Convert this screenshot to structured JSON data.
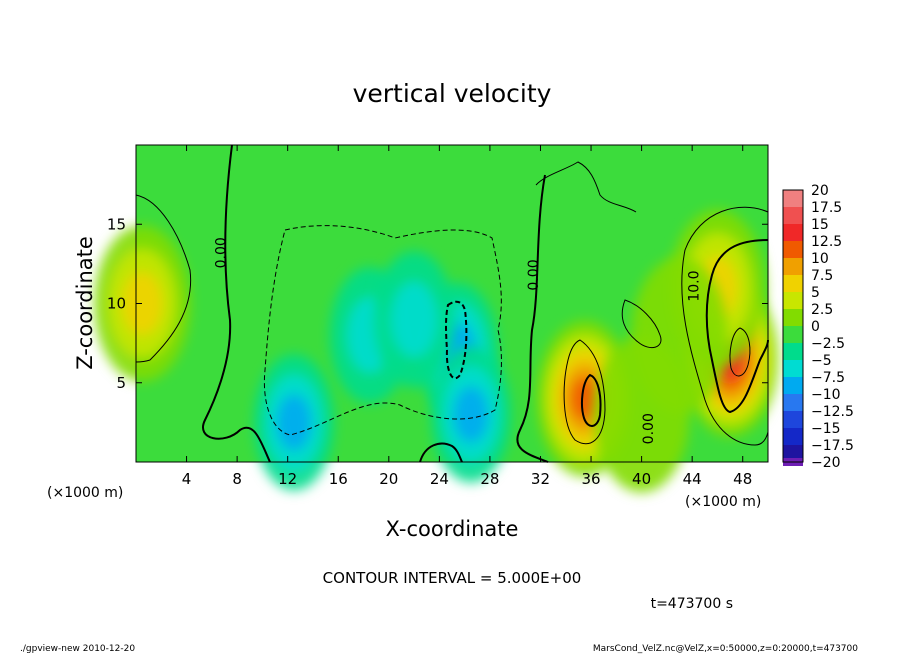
{
  "chart_data": {
    "type": "heatmap",
    "title": "vertical velocity",
    "xlabel": "X-coordinate",
    "ylabel": "Z-coordinate",
    "x_unit_note_left": "(×1000 m)",
    "x_unit_note_right": "(×1000 m)",
    "xlim": [
      0,
      50
    ],
    "ylim": [
      0,
      20
    ],
    "x_ticks": [
      4,
      8,
      12,
      16,
      20,
      24,
      28,
      32,
      36,
      40,
      44,
      48
    ],
    "y_ticks": [
      5,
      10,
      15
    ],
    "colorbar": {
      "labels": [
        "20",
        "17.5",
        "15",
        "12.5",
        "10",
        "7.5",
        "5",
        "2.5",
        "0",
        "−2.5",
        "−5",
        "−7.5",
        "−10",
        "−12.5",
        "−15",
        "−17.5",
        "−20"
      ],
      "colors": [
        "#f08080",
        "#f05050",
        "#f02828",
        "#f05a00",
        "#f0a000",
        "#f0d200",
        "#c8e600",
        "#82dc00",
        "#3cdc3c",
        "#00dc8c",
        "#00dcd2",
        "#00aaf0",
        "#2878f0",
        "#1e46dc",
        "#1428c8",
        "#1e14a0",
        "#6e1eb4"
      ]
    },
    "contour_labels": [
      {
        "text": "0.00",
        "x": 7.1,
        "z": 13.2
      },
      {
        "text": "0.00",
        "x": 31.8,
        "z": 11.8
      },
      {
        "text": "10.0",
        "x": 44.5,
        "z": 11.1
      },
      {
        "text": "0.00",
        "x": 40.9,
        "z": 2.1
      }
    ],
    "features": [
      {
        "x": 0.5,
        "z": 10,
        "w": 8
      },
      {
        "x": 35.5,
        "z": 4,
        "w": 12
      },
      {
        "x": 47,
        "z": 6.5,
        "w": 14
      },
      {
        "x": 46,
        "z": 11,
        "w": 8
      },
      {
        "x": 43,
        "z": 8,
        "w": 3
      },
      {
        "x": 18.5,
        "z": 8,
        "w": -6
      },
      {
        "x": 25.5,
        "z": 7,
        "w": -8
      },
      {
        "x": 12.5,
        "z": 2.5,
        "w": -8
      },
      {
        "x": 26.5,
        "z": 3,
        "w": -8
      },
      {
        "x": 22,
        "z": 9,
        "w": -5
      },
      {
        "x": 40,
        "z": 3,
        "w": 3
      }
    ]
  },
  "annotations": {
    "contour_interval": "CONTOUR INTERVAL = 5.000E+00",
    "time": "t=473700 s",
    "footer_left": "./gpview-new  2010-12-20",
    "footer_right": "MarsCond_VelZ.nc@VelZ,x=0:50000,z=0:20000,t=473700"
  }
}
